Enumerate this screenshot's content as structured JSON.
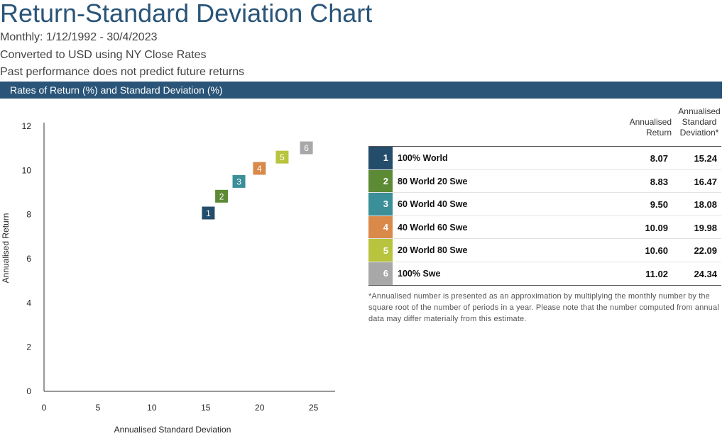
{
  "header": {
    "title": "Return-Standard Deviation Chart",
    "subtitle_lines": [
      "Monthly: 1/12/1992 - 30/4/2023",
      "Converted to USD using NY Close Rates",
      "Past performance does not predict future returns"
    ],
    "band_label": "Rates of Return (%) and Standard Deviation (%)"
  },
  "chart_data": {
    "type": "scatter",
    "xlabel": "Annualised Standard Deviation",
    "ylabel": "Annualised Return",
    "xlim": [
      0,
      27
    ],
    "ylim": [
      0,
      12
    ],
    "x_ticks": [
      "0",
      "5",
      "10",
      "15",
      "20",
      "25"
    ],
    "y_ticks": [
      "0",
      "2",
      "4",
      "6",
      "8",
      "10",
      "12"
    ],
    "grid": false,
    "points": [
      {
        "label": "1",
        "x": 15.24,
        "y": 8.07,
        "color": "#244c6b"
      },
      {
        "label": "2",
        "x": 16.47,
        "y": 8.83,
        "color": "#5d8a35"
      },
      {
        "label": "3",
        "x": 18.08,
        "y": 9.5,
        "color": "#3a8f98"
      },
      {
        "label": "4",
        "x": 19.98,
        "y": 10.09,
        "color": "#d98a4a"
      },
      {
        "label": "5",
        "x": 22.09,
        "y": 10.6,
        "color": "#b8c43e"
      },
      {
        "label": "6",
        "x": 24.34,
        "y": 11.02,
        "color": "#a8a8a8"
      }
    ]
  },
  "table": {
    "headers": {
      "return": [
        "Annualised",
        "Return"
      ],
      "sd": [
        "Annualised",
        "Standard",
        "Deviation*"
      ]
    },
    "rows": [
      {
        "num": "1",
        "name": "100% World",
        "ret": "8.07",
        "sd": "15.24",
        "color": "#244c6b"
      },
      {
        "num": "2",
        "name": "80 World 20 Swe",
        "ret": "8.83",
        "sd": "16.47",
        "color": "#5d8a35"
      },
      {
        "num": "3",
        "name": "60 World 40 Swe",
        "ret": "9.50",
        "sd": "18.08",
        "color": "#3a8f98"
      },
      {
        "num": "4",
        "name": "40 World 60 Swe",
        "ret": "10.09",
        "sd": "19.98",
        "color": "#d98a4a"
      },
      {
        "num": "5",
        "name": "20 World 80 Swe",
        "ret": "10.60",
        "sd": "22.09",
        "color": "#b8c43e"
      },
      {
        "num": "6",
        "name": "100% Swe",
        "ret": "11.02",
        "sd": "24.34",
        "color": "#a8a8a8"
      }
    ],
    "note": "*Annualised number is presented as an approximation by multiplying the monthly number by the square root of the number of periods in a year. Please note that the number computed from annual data may differ materially from this estimate."
  }
}
